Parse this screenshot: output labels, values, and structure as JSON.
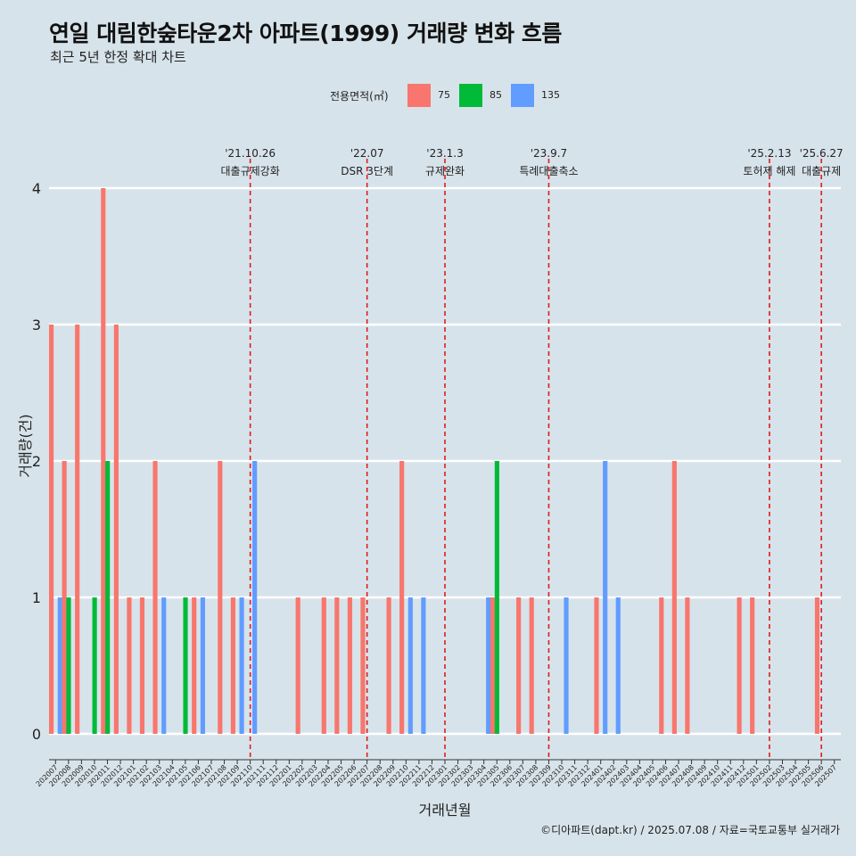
{
  "header": {
    "title": "연일 대림한숲타운2차 아파트(1999) 거래량 변화 흐름",
    "subtitle": "최근 5년 한정 확대 차트"
  },
  "legend": {
    "title": "전용면적(㎡)",
    "items": [
      {
        "label": "75",
        "color": "#f8766d"
      },
      {
        "label": "85",
        "color": "#00ba38"
      },
      {
        "label": "135",
        "color": "#619cff"
      }
    ]
  },
  "caption": "©디아파트(dapt.kr) / 2025.07.08 / 자료=국토교통부 실거래가",
  "chart_data": {
    "type": "bar",
    "xlabel": "거래년월",
    "ylabel": "거래량(건)",
    "ylim": [
      0,
      4
    ],
    "yticks": [
      0,
      1,
      2,
      3,
      4
    ],
    "categories": [
      "202007",
      "202008",
      "202009",
      "202010",
      "202011",
      "202012",
      "202101",
      "202102",
      "202103",
      "202104",
      "202105",
      "202106",
      "202107",
      "202108",
      "202109",
      "202110",
      "202111",
      "202112",
      "202201",
      "202202",
      "202203",
      "202204",
      "202205",
      "202206",
      "202207",
      "202208",
      "202209",
      "202210",
      "202211",
      "202212",
      "202301",
      "202302",
      "202303",
      "202304",
      "202305",
      "202306",
      "202307",
      "202308",
      "202309",
      "202310",
      "202311",
      "202312",
      "202401",
      "202402",
      "202403",
      "202404",
      "202405",
      "202406",
      "202407",
      "202408",
      "202409",
      "202410",
      "202411",
      "202412",
      "202501",
      "202502",
      "202503",
      "202504",
      "202505",
      "202506",
      "202507"
    ],
    "series": [
      {
        "name": "75",
        "color": "#f8766d",
        "values": [
          3,
          2,
          3,
          0,
          4,
          3,
          1,
          1,
          2,
          0,
          0,
          1,
          0,
          2,
          1,
          0,
          0,
          0,
          0,
          1,
          0,
          1,
          1,
          1,
          1,
          0,
          1,
          2,
          0,
          0,
          0,
          0,
          0,
          0,
          1,
          0,
          1,
          1,
          0,
          0,
          0,
          0,
          1,
          0,
          0,
          0,
          0,
          1,
          2,
          1,
          0,
          0,
          0,
          1,
          1,
          0,
          0,
          0,
          0,
          1,
          0
        ]
      },
      {
        "name": "85",
        "color": "#00ba38",
        "values": [
          0,
          1,
          0,
          1,
          2,
          0,
          0,
          0,
          0,
          0,
          1,
          0,
          0,
          0,
          0,
          0,
          0,
          0,
          0,
          0,
          0,
          0,
          0,
          0,
          0,
          0,
          0,
          0,
          0,
          0,
          0,
          0,
          0,
          0,
          2,
          0,
          0,
          0,
          0,
          0,
          0,
          0,
          0,
          0,
          0,
          0,
          0,
          0,
          0,
          0,
          0,
          0,
          0,
          0,
          0,
          0,
          0,
          0,
          0,
          0,
          0
        ]
      },
      {
        "name": "135",
        "color": "#619cff",
        "values": [
          1,
          0,
          0,
          0,
          0,
          0,
          0,
          0,
          1,
          0,
          0,
          1,
          0,
          0,
          1,
          2,
          0,
          0,
          0,
          0,
          0,
          0,
          0,
          0,
          0,
          0,
          0,
          1,
          1,
          0,
          0,
          0,
          0,
          1,
          0,
          0,
          0,
          0,
          0,
          1,
          0,
          0,
          2,
          1,
          0,
          0,
          0,
          0,
          0,
          0,
          0,
          0,
          0,
          0,
          0,
          0,
          0,
          0,
          0,
          0,
          0
        ]
      }
    ],
    "events": [
      {
        "date": "202110",
        "label1": "'21.10.26",
        "label2": "대출규제강화"
      },
      {
        "date": "202207",
        "label1": "'22.07",
        "label2": "DSR 3단계"
      },
      {
        "date": "202301",
        "label1": "'23.1.3",
        "label2": "규제완화"
      },
      {
        "date": "202309",
        "label1": "'23.9.7",
        "label2": "특례대출축소"
      },
      {
        "date": "202502",
        "label1": "'25.2.13",
        "label2": "토허제 해제"
      },
      {
        "date": "202506",
        "label1": "'25.6.27",
        "label2": "대출규제"
      }
    ]
  }
}
